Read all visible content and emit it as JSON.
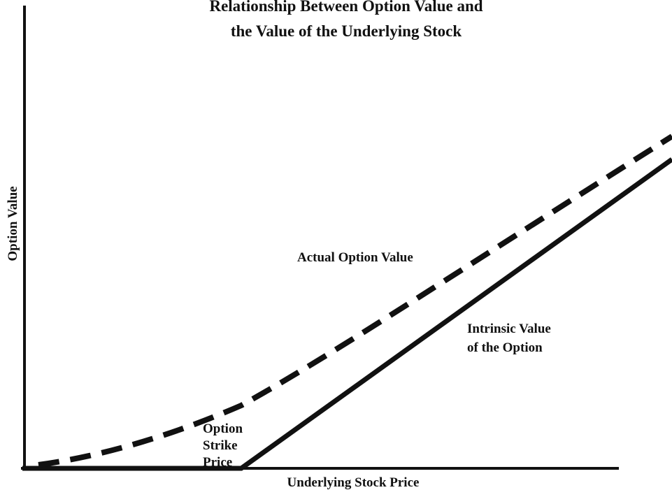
{
  "title": [
    "Relationship Between Option Value and",
    "the Value of the Underlying Stock"
  ],
  "axes": {
    "x_label": "Underlying Stock Price",
    "y_label": "Option Value"
  },
  "annotations": {
    "actual": "Actual Option Value",
    "intrinsic": [
      "Intrinsic Value",
      "of the Option"
    ],
    "strike": [
      "Option",
      "Strike",
      "Price"
    ]
  }
}
